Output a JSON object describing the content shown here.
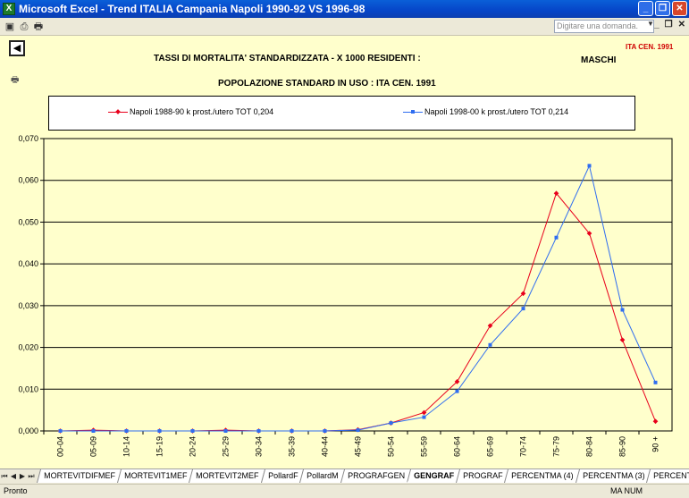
{
  "window": {
    "title": "Microsoft Excel - Trend ITALIA Campania Napoli 1990-92 VS 1996-98"
  },
  "toolbar": {
    "ask_placeholder": "Digitare una domanda."
  },
  "sheet": {
    "ita_tag": "ITA CEN. 1991",
    "title_line1": "TASSI DI MORTALITA' STANDARDIZZATA - X 1000 RESIDENTI :",
    "gender": "MASCHI",
    "title_line2": "POPOLAZIONE STANDARD IN USO : ITA CEN. 1991"
  },
  "chart_data": {
    "type": "line",
    "categories": [
      "00-04",
      "05-09",
      "10-14",
      "15-19",
      "20-24",
      "25-29",
      "30-34",
      "35-39",
      "40-44",
      "45-49",
      "50-54",
      "55-59",
      "60-64",
      "65-69",
      "70-74",
      "75-79",
      "80-84",
      "85-90",
      "90 +"
    ],
    "ylim": [
      0,
      0.07
    ],
    "yticks": [
      "0,000",
      "0,010",
      "0,020",
      "0,030",
      "0,040",
      "0,050",
      "0,060",
      "0,070"
    ],
    "grid": true,
    "legend_position": "top",
    "series": [
      {
        "name": "Napoli 1988-90 k prost./utero TOT 0,204",
        "color": "#e8001c",
        "marker": "diamond",
        "values": [
          0,
          0.0002,
          0,
          0,
          0,
          0.0002,
          0,
          0,
          0,
          0.0003,
          0.0019,
          0.0044,
          0.0118,
          0.0252,
          0.0329,
          0.0569,
          0.0473,
          0.0218,
          0.0023
        ]
      },
      {
        "name": "Napoli 1998-00 k prost./utero TOT 0,214",
        "color": "#2f6df0",
        "marker": "square",
        "values": [
          0,
          0,
          0,
          0,
          0,
          0,
          0,
          0,
          0,
          0.0002,
          0.0019,
          0.0033,
          0.0095,
          0.0206,
          0.0293,
          0.0463,
          0.0635,
          0.029,
          0.0116
        ]
      }
    ]
  },
  "tabs": [
    "MORTEVITDIFMEF",
    "MORTEVIT1MEF",
    "MORTEVIT2MEF",
    "PollardF",
    "PollardM",
    "PROGRAFGEN",
    "GENGRAF",
    "PROGRAF",
    "PERCENTMA (4)",
    "PERCENTMA (3)",
    "PERCENTMA"
  ],
  "active_tab": "GENGRAF",
  "status": {
    "left": "Pronto",
    "right": "MA  NUM"
  }
}
